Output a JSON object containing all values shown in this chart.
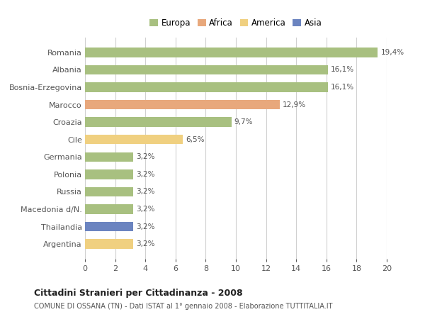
{
  "countries": [
    "Romania",
    "Albania",
    "Bosnia-Erzegovina",
    "Marocco",
    "Croazia",
    "Cile",
    "Germania",
    "Polonia",
    "Russia",
    "Macedonia d/N.",
    "Thailandia",
    "Argentina"
  ],
  "values": [
    19.4,
    16.1,
    16.1,
    12.9,
    9.7,
    6.5,
    3.2,
    3.2,
    3.2,
    3.2,
    3.2,
    3.2
  ],
  "labels": [
    "19,4%",
    "16,1%",
    "16,1%",
    "12,9%",
    "9,7%",
    "6,5%",
    "3,2%",
    "3,2%",
    "3,2%",
    "3,2%",
    "3,2%",
    "3,2%"
  ],
  "colors": [
    "#a8c080",
    "#a8c080",
    "#a8c080",
    "#e8a87c",
    "#a8c080",
    "#f0d080",
    "#a8c080",
    "#a8c080",
    "#a8c080",
    "#a8c080",
    "#6b84c0",
    "#f0d080"
  ],
  "legend_labels": [
    "Europa",
    "Africa",
    "America",
    "Asia"
  ],
  "legend_colors": [
    "#a8c080",
    "#e8a87c",
    "#f0d080",
    "#6b84c0"
  ],
  "title": "Cittadini Stranieri per Cittadinanza - 2008",
  "subtitle": "COMUNE DI OSSANA (TN) - Dati ISTAT al 1° gennaio 2008 - Elaborazione TUTTITALIA.IT",
  "xlim": [
    0,
    20
  ],
  "xticks": [
    0,
    2,
    4,
    6,
    8,
    10,
    12,
    14,
    16,
    18,
    20
  ],
  "background_color": "#ffffff",
  "grid_color": "#d0d0d0",
  "bar_height": 0.55
}
